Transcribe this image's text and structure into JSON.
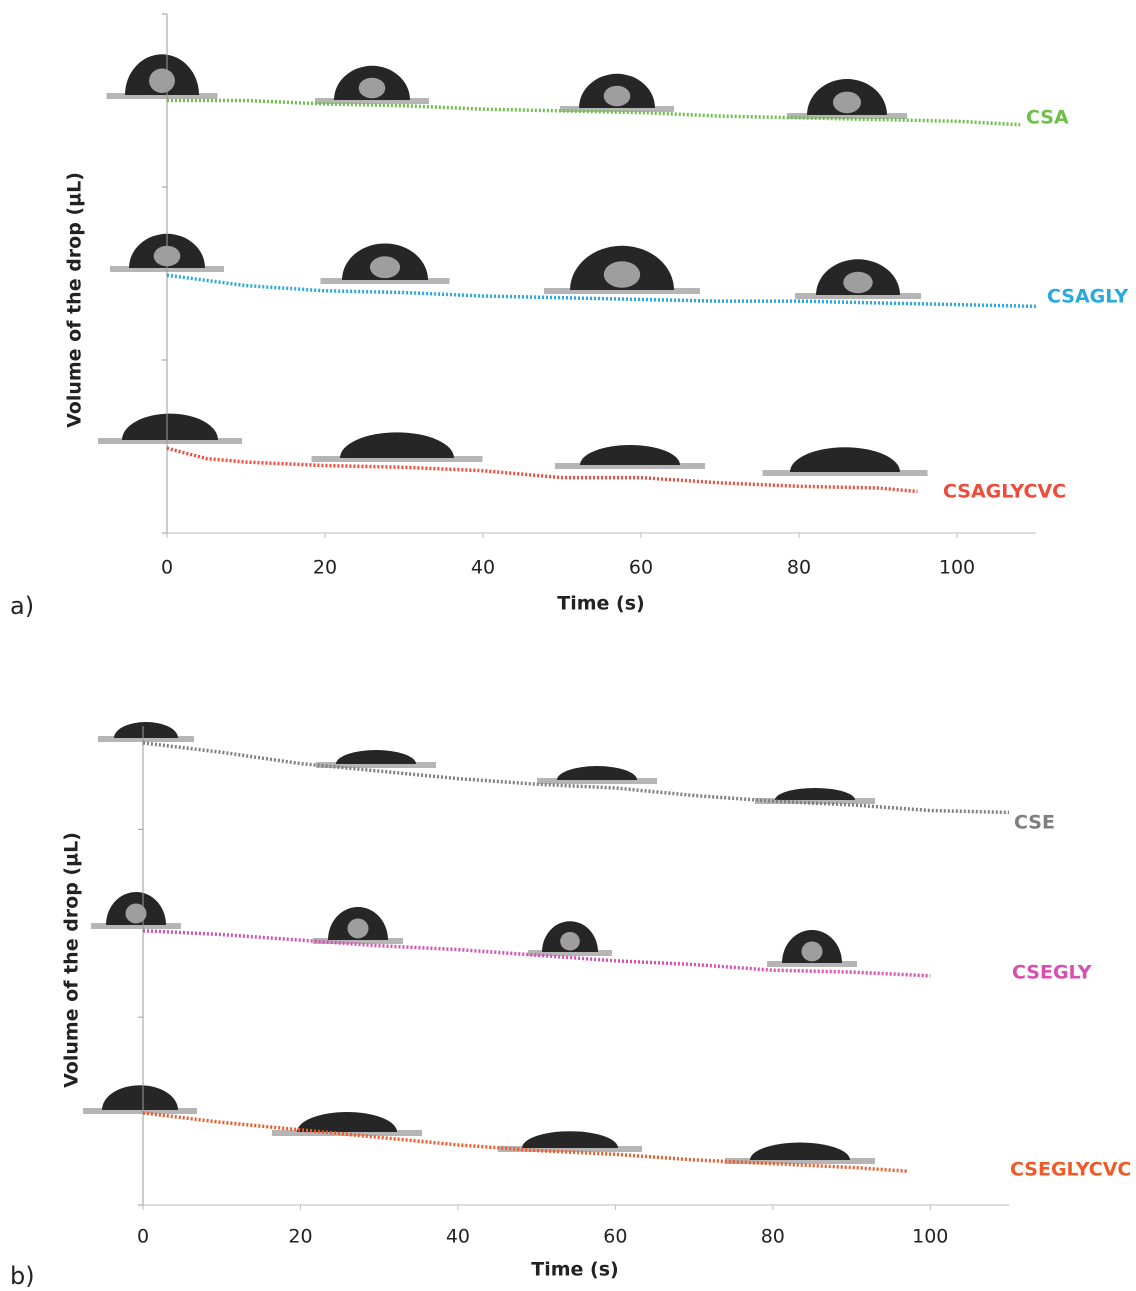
{
  "chart_data": [
    {
      "type": "line",
      "panel_label": "a)",
      "x_label": "Time (s)",
      "y_label": "Volume of the drop (µL)",
      "xlim": [
        0,
        110
      ],
      "xticks": [
        0,
        20,
        40,
        60,
        80,
        100
      ],
      "ylim": [
        0,
        3
      ],
      "yticks": [
        {
          "value": 0,
          "label": null
        },
        {
          "value": 1,
          "label": null
        },
        {
          "value": 2,
          "label": null
        },
        {
          "value": 3,
          "label": null
        }
      ],
      "series": [
        {
          "name": "CSA",
          "color": "#6cc04a",
          "x": [
            0,
            10,
            20,
            30,
            40,
            50,
            60,
            70,
            80,
            90,
            100,
            108
          ],
          "values": [
            2.5,
            2.5,
            2.48,
            2.47,
            2.45,
            2.44,
            2.43,
            2.41,
            2.4,
            2.39,
            2.38,
            2.36
          ]
        },
        {
          "name": "CSAGLY",
          "color": "#2aa8e0",
          "x": [
            0,
            10,
            20,
            30,
            40,
            50,
            60,
            70,
            80,
            90,
            100,
            110
          ],
          "values": [
            1.49,
            1.43,
            1.4,
            1.39,
            1.37,
            1.36,
            1.35,
            1.34,
            1.34,
            1.33,
            1.32,
            1.31
          ]
        },
        {
          "name": "CSAGLYCVC",
          "color": "#f04a3a",
          "x": [
            0,
            5,
            10,
            20,
            30,
            40,
            50,
            60,
            70,
            80,
            90,
            95
          ],
          "values": [
            0.49,
            0.43,
            0.41,
            0.39,
            0.38,
            0.36,
            0.32,
            0.32,
            0.29,
            0.27,
            0.26,
            0.24
          ]
        }
      ]
    },
    {
      "type": "line",
      "panel_label": "b)",
      "x_label": "Time (s)",
      "y_label": "Volume of the drop (µL)",
      "xlim": [
        0,
        110
      ],
      "xticks": [
        0,
        20,
        40,
        60,
        80,
        100
      ],
      "ylim": [
        0,
        2.55
      ],
      "yticks": [
        {
          "value": 0,
          "label": null
        },
        {
          "value": 1,
          "label": null
        },
        {
          "value": 2,
          "label": null
        }
      ],
      "series": [
        {
          "name": "CSE",
          "color": "#7f7f7f",
          "x": [
            0,
            10,
            20,
            30,
            40,
            50,
            60,
            70,
            80,
            90,
            100,
            110
          ],
          "values": [
            2.46,
            2.41,
            2.35,
            2.31,
            2.27,
            2.24,
            2.22,
            2.18,
            2.15,
            2.13,
            2.1,
            2.09
          ]
        },
        {
          "name": "CSEGLY",
          "color": "#d84fb0",
          "x": [
            0,
            10,
            20,
            30,
            40,
            50,
            60,
            70,
            80,
            90,
            100
          ],
          "values": [
            1.46,
            1.44,
            1.41,
            1.38,
            1.36,
            1.33,
            1.3,
            1.28,
            1.25,
            1.24,
            1.22
          ]
        },
        {
          "name": "CSEGLYCVC",
          "color": "#f05a28",
          "x": [
            0,
            10,
            20,
            30,
            40,
            50,
            60,
            70,
            80,
            90,
            97
          ],
          "values": [
            0.49,
            0.44,
            0.4,
            0.36,
            0.32,
            0.29,
            0.27,
            0.24,
            0.22,
            0.2,
            0.18
          ]
        }
      ]
    }
  ]
}
